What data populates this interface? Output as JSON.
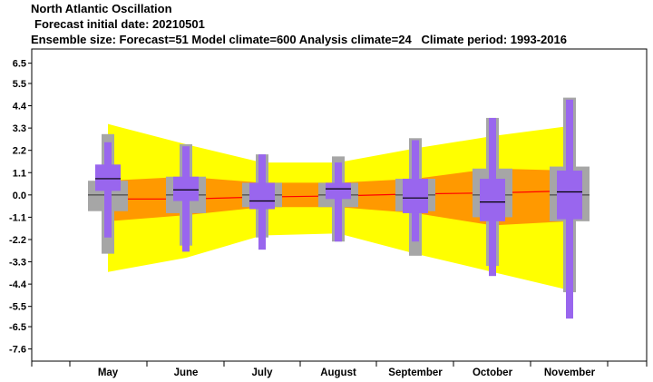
{
  "chart_data": {
    "type": "box",
    "title": "North Atlantic Oscillation",
    "subtitle": "Forecast initial date: 20210501",
    "info_line": "Ensemble size: Forecast=51 Model climate=600 Analysis climate=24   Climate period: 1993-2016",
    "xlabel": "",
    "ylabel": "",
    "ylim": [
      -8.2,
      7.2
    ],
    "yticks": [
      6.5,
      5.5,
      4.4,
      3.3,
      2.2,
      1.1,
      0.0,
      -1.1,
      -2.2,
      -3.3,
      -4.4,
      -5.5,
      -6.5,
      -7.6
    ],
    "ytick_labels": [
      "6.5",
      "5.5",
      "4.4",
      "3.3",
      "2.2",
      "1.1",
      "0.0",
      "-1.1",
      "-2.2",
      "-3.3",
      "-4.4",
      "-5.5",
      "-6.5",
      "-7.6"
    ],
    "categories": [
      "May",
      "June",
      "July",
      "August",
      "September",
      "October",
      "November"
    ],
    "climate_bands": {
      "outer": {
        "upper": [
          3.5,
          2.5,
          1.6,
          1.6,
          2.3,
          2.9,
          3.4
        ],
        "lower": [
          -3.8,
          -3.1,
          -2.0,
          -1.9,
          -2.9,
          -3.8,
          -4.7
        ]
      },
      "inner": {
        "upper": [
          0.7,
          0.9,
          0.6,
          0.6,
          0.8,
          1.3,
          1.2
        ],
        "lower": [
          -1.3,
          -1.0,
          -0.6,
          -0.6,
          -0.9,
          -1.5,
          -1.3
        ]
      },
      "median": [
        -0.2,
        -0.2,
        -0.1,
        -0.05,
        0.05,
        0.1,
        0.2
      ]
    },
    "model_climate": {
      "whisker_high": [
        0.7,
        0.9,
        0.6,
        0.6,
        0.8,
        1.3,
        1.4
      ],
      "box_high": [
        0.7,
        0.9,
        0.6,
        0.6,
        0.8,
        1.3,
        1.4
      ],
      "median": [
        0.0,
        0.0,
        0.0,
        0.0,
        0.0,
        0.0,
        0.0
      ],
      "box_low": [
        -0.8,
        -0.9,
        -0.6,
        -0.6,
        -0.8,
        -1.1,
        -1.3
      ],
      "whisker_low": [
        -0.8,
        -0.9,
        -0.6,
        -0.6,
        -0.8,
        -1.1,
        -1.3
      ]
    },
    "forecast": {
      "max": [
        2.6,
        2.4,
        2.0,
        1.6,
        2.7,
        3.8,
        4.7
      ],
      "p90": [
        2.6,
        2.4,
        2.0,
        1.6,
        2.7,
        3.8,
        4.7
      ],
      "p75": [
        1.5,
        0.9,
        0.6,
        0.6,
        0.8,
        0.8,
        1.2
      ],
      "median": [
        0.8,
        0.25,
        -0.3,
        0.3,
        -0.15,
        -0.35,
        0.15
      ],
      "p25": [
        0.2,
        -0.3,
        -0.7,
        -0.2,
        -0.9,
        -1.3,
        -1.2
      ],
      "p10": [
        -2.1,
        -2.4,
        -2.3,
        -2.3,
        -2.3,
        -3.5,
        -4.8
      ],
      "min": [
        -2.1,
        -2.8,
        -2.7,
        -2.3,
        -2.3,
        -4.0,
        -6.1
      ]
    },
    "model_climate_ext": {
      "high": [
        3.0,
        2.5,
        2.0,
        1.9,
        2.8,
        3.8,
        4.8
      ],
      "low": [
        -2.9,
        -2.5,
        -2.1,
        -2.3,
        -3.0,
        -3.5,
        -4.8
      ]
    },
    "colors": {
      "outer_band": "#ffff00",
      "inner_band": "#ff9900",
      "band_median": "#ff0000",
      "climate_box": "#a6a6a6",
      "forecast_box": "#9966ee",
      "median_line": "#000000",
      "axis": "#000000"
    }
  }
}
